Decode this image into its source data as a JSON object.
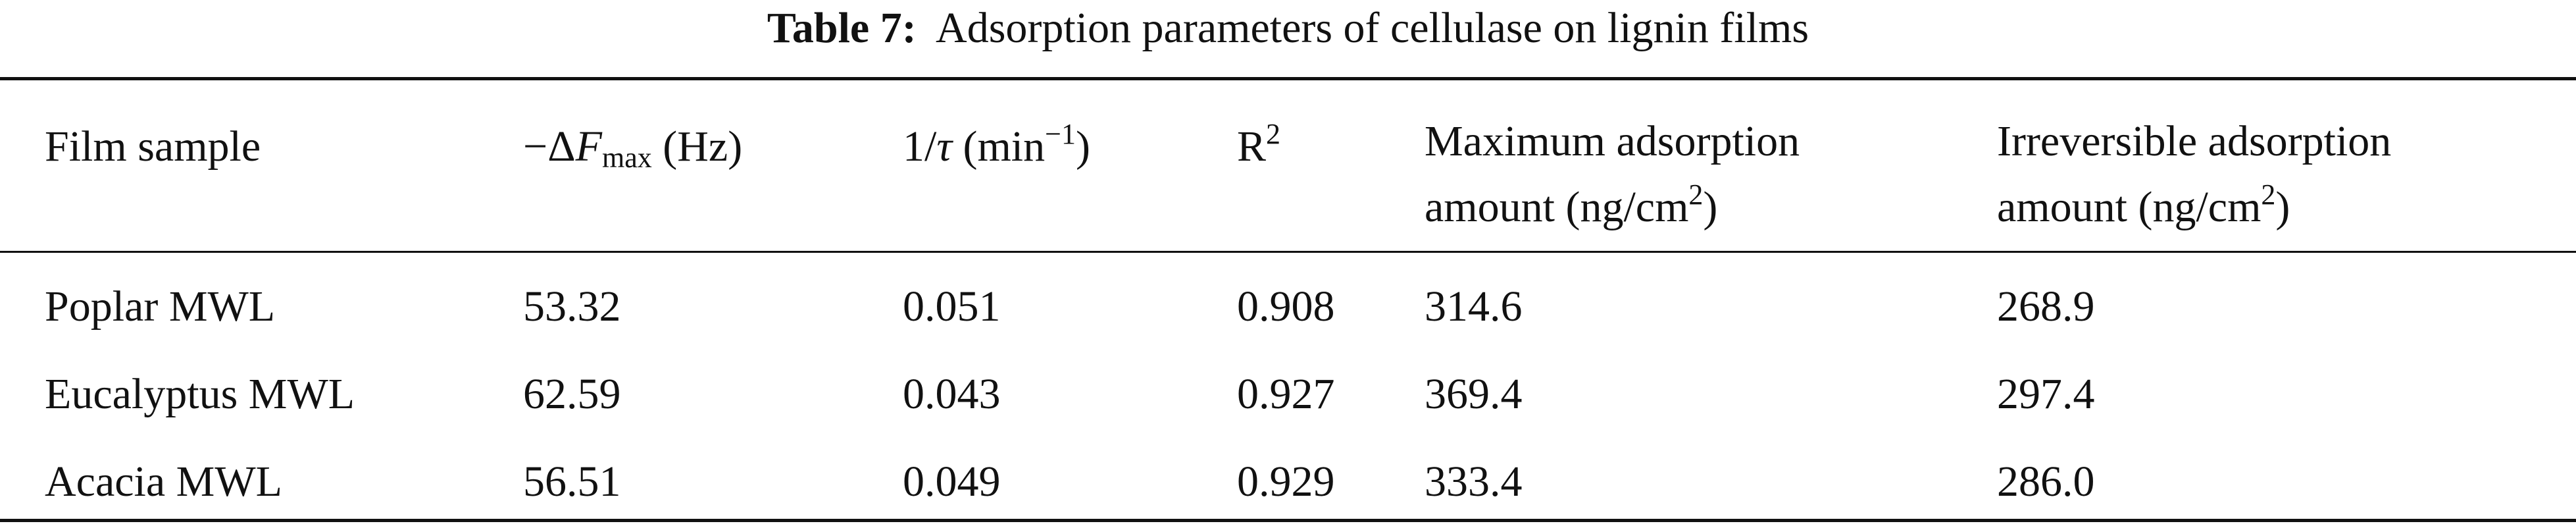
{
  "caption": {
    "label": "Table 7:",
    "text": "Adsorption parameters of cellulase on lignin films"
  },
  "table": {
    "headers": [
      [
        "Film sample"
      ],
      [
        "−Δ",
        "F",
        "max",
        " (Hz)"
      ],
      [
        "1/",
        "τ",
        " (min",
        "−1",
        ")"
      ],
      [
        "R",
        "2"
      ],
      [
        "Maximum adsorption",
        "amount (ng/cm",
        "2",
        ")"
      ],
      [
        "Irreversible adsorption",
        "amount (ng/cm",
        "2",
        ")"
      ]
    ],
    "rows": [
      [
        "Poplar MWL",
        "53.32",
        "0.051",
        "0.908",
        "314.6",
        "268.9"
      ],
      [
        "Eucalyptus MWL",
        "62.59",
        "0.043",
        "0.927",
        "369.4",
        "297.4"
      ],
      [
        "Acacia MWL",
        "56.51",
        "0.049",
        "0.929",
        "333.4",
        "286.0"
      ]
    ]
  }
}
